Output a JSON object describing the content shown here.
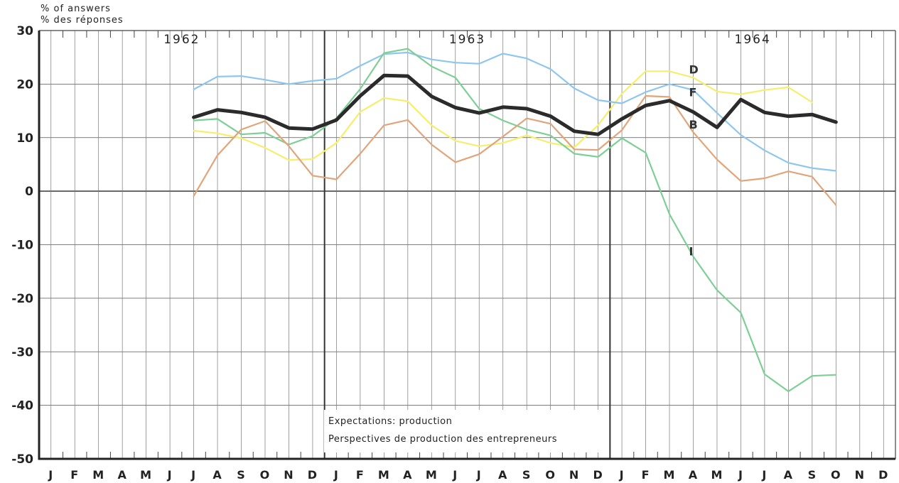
{
  "chart_data": {
    "type": "line",
    "ylabel": [
      "% of answers",
      "% des réponses"
    ],
    "ylim": [
      -50,
      30
    ],
    "yticks": [
      "30",
      "20",
      "10",
      "0",
      "-10",
      "-20",
      "-30",
      "-40",
      "-50"
    ],
    "ytick_values": [
      30,
      20,
      10,
      0,
      -10,
      -20,
      -30,
      -40,
      -50
    ],
    "x_month_labels": [
      "J",
      "F",
      "M",
      "A",
      "M",
      "J",
      "J",
      "A",
      "S",
      "O",
      "N",
      "D",
      "J",
      "F",
      "M",
      "A",
      "M",
      "J",
      "J",
      "A",
      "S",
      "O",
      "N",
      "D",
      "J",
      "F",
      "M",
      "A",
      "M",
      "J",
      "J",
      "A",
      "S",
      "O",
      "N",
      "D"
    ],
    "years": [
      "1962",
      "1963",
      "1964"
    ],
    "annotation": [
      "Expectations: production",
      "Perspectives de production des entrepreneurs"
    ],
    "grid": true,
    "x_start_index": 6,
    "series": [
      {
        "name": "D",
        "color": "#f5ee6e",
        "width": 2.2,
        "values": [
          11.3,
          10.8,
          9.9,
          8.1,
          5.8,
          6.0,
          9.0,
          14.8,
          17.4,
          16.8,
          12.3,
          9.4,
          8.4,
          9.0,
          10.4,
          9.0,
          8.2,
          12.3,
          18.2,
          22.4,
          22.4,
          21.2,
          18.6,
          18.1,
          18.9,
          19.4,
          16.6
        ]
      },
      {
        "name": "F",
        "color": "#8dc6ee",
        "width": 2.2,
        "values": [
          19.0,
          21.4,
          21.5,
          20.8,
          20.0,
          20.6,
          21.0,
          23.4,
          25.6,
          25.9,
          24.6,
          24.0,
          23.8,
          25.7,
          24.8,
          22.8,
          19.2,
          17.0,
          16.4,
          18.5,
          20.0,
          18.9,
          14.6,
          10.5,
          7.6,
          5.3,
          4.3,
          3.8
        ]
      },
      {
        "name": "I",
        "color": "#7dcf95",
        "width": 2.2,
        "values": [
          13.2,
          13.5,
          10.6,
          10.9,
          8.7,
          10.3,
          13.6,
          19.1,
          25.8,
          26.6,
          23.3,
          21.2,
          15.4,
          13.2,
          11.5,
          10.4,
          7.0,
          6.4,
          9.9,
          7.2,
          -4.3,
          -12.2,
          -18.5,
          -22.7,
          -34.2,
          -37.4,
          -34.5,
          -34.3
        ]
      },
      {
        "name": "",
        "color": "#e0a57a",
        "width": 2.2,
        "values": [
          -0.9,
          6.7,
          11.5,
          13.1,
          8.4,
          2.9,
          2.2,
          7.0,
          12.3,
          13.3,
          8.7,
          5.4,
          6.9,
          10.2,
          13.6,
          12.6,
          7.8,
          7.7,
          11.4,
          17.8,
          17.6,
          11.0,
          5.9,
          1.9,
          2.4,
          3.7,
          2.7,
          -2.6
        ]
      },
      {
        "name": "B",
        "color": "#2b2b2b",
        "width": 5,
        "values": [
          13.8,
          15.2,
          14.7,
          13.8,
          11.8,
          11.6,
          13.3,
          17.8,
          21.6,
          21.5,
          17.7,
          15.6,
          14.6,
          15.7,
          15.4,
          14.0,
          11.2,
          10.6,
          13.5,
          16.0,
          16.9,
          14.8,
          11.9,
          17.1,
          14.7,
          14.0,
          14.3,
          12.9
        ]
      }
    ],
    "series_label_positions": [
      {
        "name": "D",
        "month_index": 27,
        "value": 22.8
      },
      {
        "name": "F",
        "month_index": 27,
        "value": 18.5
      },
      {
        "name": "B",
        "month_index": 27,
        "value": 12.5
      },
      {
        "name": "I",
        "month_index": 27,
        "value": -11.2
      }
    ]
  }
}
